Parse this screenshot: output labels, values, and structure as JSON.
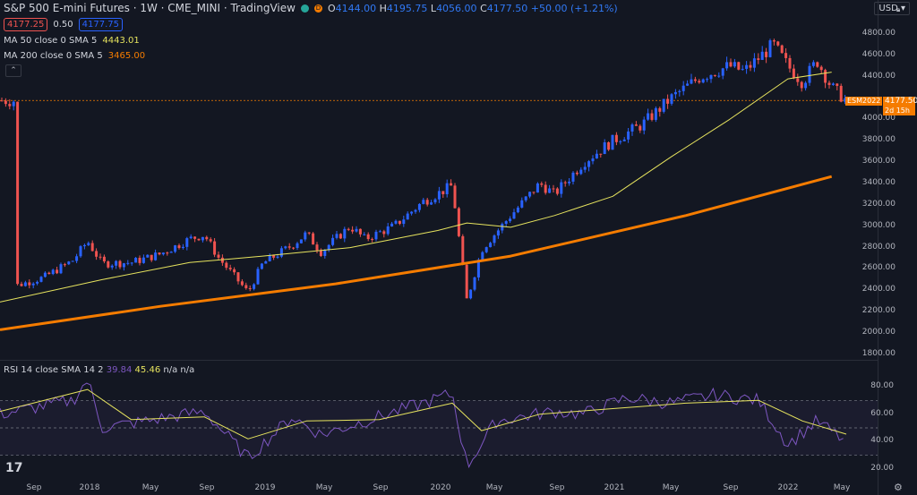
{
  "header": {
    "title": "S&P 500 E-mini Futures · 1W · CME_MINI · TradingView",
    "status_icon": "circle-status-icon",
    "delay_badge": "D",
    "ohlc": {
      "o_label": "O",
      "o": "4144.00",
      "h_label": "H",
      "h": "4195.75",
      "l_label": "L",
      "l": "4056.00",
      "c_label": "C",
      "c": "4177.50",
      "chg": "+50.00 (+1.21%)"
    }
  },
  "trade": {
    "sell": "4177.25",
    "spread": "0.50",
    "buy": "4177.75"
  },
  "indicators": {
    "ma50_label": "MA 50 close 0 SMA 5",
    "ma50_value": "4443.01",
    "ma200_label": "MA 200 close 0 SMA 5",
    "ma200_value": "3465.00",
    "collapse_icon": "chevron-up-icon"
  },
  "rsi": {
    "label": "RSI 14 close SMA 14 2",
    "rsi_value": "39.84",
    "sma_value": "45.46",
    "na1": "n/a",
    "na2": "n/a"
  },
  "price_tag": {
    "symbol": "ESM2022",
    "price": "4177.50",
    "countdown": "2d 15h"
  },
  "currency": "USD",
  "y_axis_labels": [
    "4800.00",
    "4600.00",
    "4400.00",
    "4000.00",
    "3800.00",
    "3600.00",
    "3400.00",
    "3200.00",
    "3000.00",
    "2800.00",
    "2600.00",
    "2400.00",
    "2200.00",
    "2000.00",
    "1800.00"
  ],
  "rsi_axis_labels": [
    "80.00",
    "60.00",
    "40.00",
    "20.00"
  ],
  "x_axis_labels": [
    "Sep",
    "2018",
    "May",
    "Sep",
    "2019",
    "May",
    "Sep",
    "2020",
    "May",
    "Sep",
    "2021",
    "May",
    "Sep",
    "2022",
    "May"
  ],
  "colors": {
    "background": "#131722",
    "up": "#2962ff",
    "down": "#ef5350",
    "ma50": "#e6e35e",
    "ma200": "#f57c00",
    "rsi": "#7e57c2",
    "rsi_sma": "#e6e35e"
  },
  "chart_data": {
    "type": "candlestick",
    "y_range": [
      1800,
      4900
    ],
    "rsi_range": [
      15,
      90
    ],
    "rsi_levels": [
      70,
      50,
      30
    ],
    "price_series": [
      [
        "2017-08",
        2440
      ],
      [
        "2017-10",
        2520
      ],
      [
        "2017-12",
        2680
      ],
      [
        "2018-01",
        2860
      ],
      [
        "2018-02",
        2650
      ],
      [
        "2018-04",
        2660
      ],
      [
        "2018-06",
        2740
      ],
      [
        "2018-08",
        2880
      ],
      [
        "2018-09",
        2920
      ],
      [
        "2018-10",
        2700
      ],
      [
        "2018-12",
        2380
      ],
      [
        "2019-01",
        2650
      ],
      [
        "2019-03",
        2820
      ],
      [
        "2019-04",
        2930
      ],
      [
        "2019-05",
        2760
      ],
      [
        "2019-07",
        3000
      ],
      [
        "2019-08",
        2880
      ],
      [
        "2019-10",
        3000
      ],
      [
        "2019-12",
        3230
      ],
      [
        "2020-02",
        3380
      ],
      [
        "2020-03",
        2300
      ],
      [
        "2020-04",
        2780
      ],
      [
        "2020-06",
        3100
      ],
      [
        "2020-08",
        3400
      ],
      [
        "2020-09",
        3300
      ],
      [
        "2020-11",
        3600
      ],
      [
        "2021-01",
        3800
      ],
      [
        "2021-03",
        3950
      ],
      [
        "2021-05",
        4200
      ],
      [
        "2021-07",
        4400
      ],
      [
        "2021-09",
        4500
      ],
      [
        "2021-10",
        4450
      ],
      [
        "2021-12",
        4700
      ],
      [
        "2022-01",
        4500
      ],
      [
        "2022-02",
        4350
      ],
      [
        "2022-03",
        4550
      ],
      [
        "2022-04",
        4300
      ],
      [
        "2022-05",
        4177
      ]
    ],
    "ma50_series": [
      [
        "2017-07",
        2290
      ],
      [
        "2018-02",
        2500
      ],
      [
        "2018-08",
        2660
      ],
      [
        "2019-01",
        2720
      ],
      [
        "2019-07",
        2800
      ],
      [
        "2020-01",
        2960
      ],
      [
        "2020-03",
        3030
      ],
      [
        "2020-06",
        2990
      ],
      [
        "2020-09",
        3100
      ],
      [
        "2021-01",
        3280
      ],
      [
        "2021-05",
        3650
      ],
      [
        "2021-09",
        4000
      ],
      [
        "2022-01",
        4380
      ],
      [
        "2022-04",
        4443
      ]
    ],
    "ma200_series": [
      [
        "2017-07",
        2030
      ],
      [
        "2018-06",
        2250
      ],
      [
        "2019-06",
        2460
      ],
      [
        "2020-06",
        2720
      ],
      [
        "2021-06",
        3100
      ],
      [
        "2022-04",
        3465
      ]
    ],
    "rsi_series": [
      [
        "2017-07",
        60
      ],
      [
        "2017-12",
        70
      ],
      [
        "2018-01",
        85
      ],
      [
        "2018-02",
        50
      ],
      [
        "2018-05",
        55
      ],
      [
        "2018-09",
        62
      ],
      [
        "2018-12",
        28
      ],
      [
        "2019-03",
        58
      ],
      [
        "2019-05",
        45
      ],
      [
        "2019-08",
        55
      ],
      [
        "2019-12",
        68
      ],
      [
        "2020-02",
        75
      ],
      [
        "2020-03",
        22
      ],
      [
        "2020-05",
        55
      ],
      [
        "2020-09",
        62
      ],
      [
        "2020-11",
        60
      ],
      [
        "2021-02",
        72
      ],
      [
        "2021-05",
        68
      ],
      [
        "2021-08",
        74
      ],
      [
        "2021-11",
        70
      ],
      [
        "2022-01",
        38
      ],
      [
        "2022-03",
        55
      ],
      [
        "2022-05",
        39.84
      ]
    ],
    "rsi_sma_series": [
      [
        "2017-07",
        62
      ],
      [
        "2018-01",
        78
      ],
      [
        "2018-04",
        56
      ],
      [
        "2018-09",
        58
      ],
      [
        "2018-12",
        42
      ],
      [
        "2019-04",
        55
      ],
      [
        "2019-09",
        56
      ],
      [
        "2020-02",
        68
      ],
      [
        "2020-04",
        48
      ],
      [
        "2020-08",
        60
      ],
      [
        "2021-01",
        64
      ],
      [
        "2021-06",
        68
      ],
      [
        "2021-11",
        70
      ],
      [
        "2022-02",
        55
      ],
      [
        "2022-05",
        45.46
      ]
    ]
  }
}
